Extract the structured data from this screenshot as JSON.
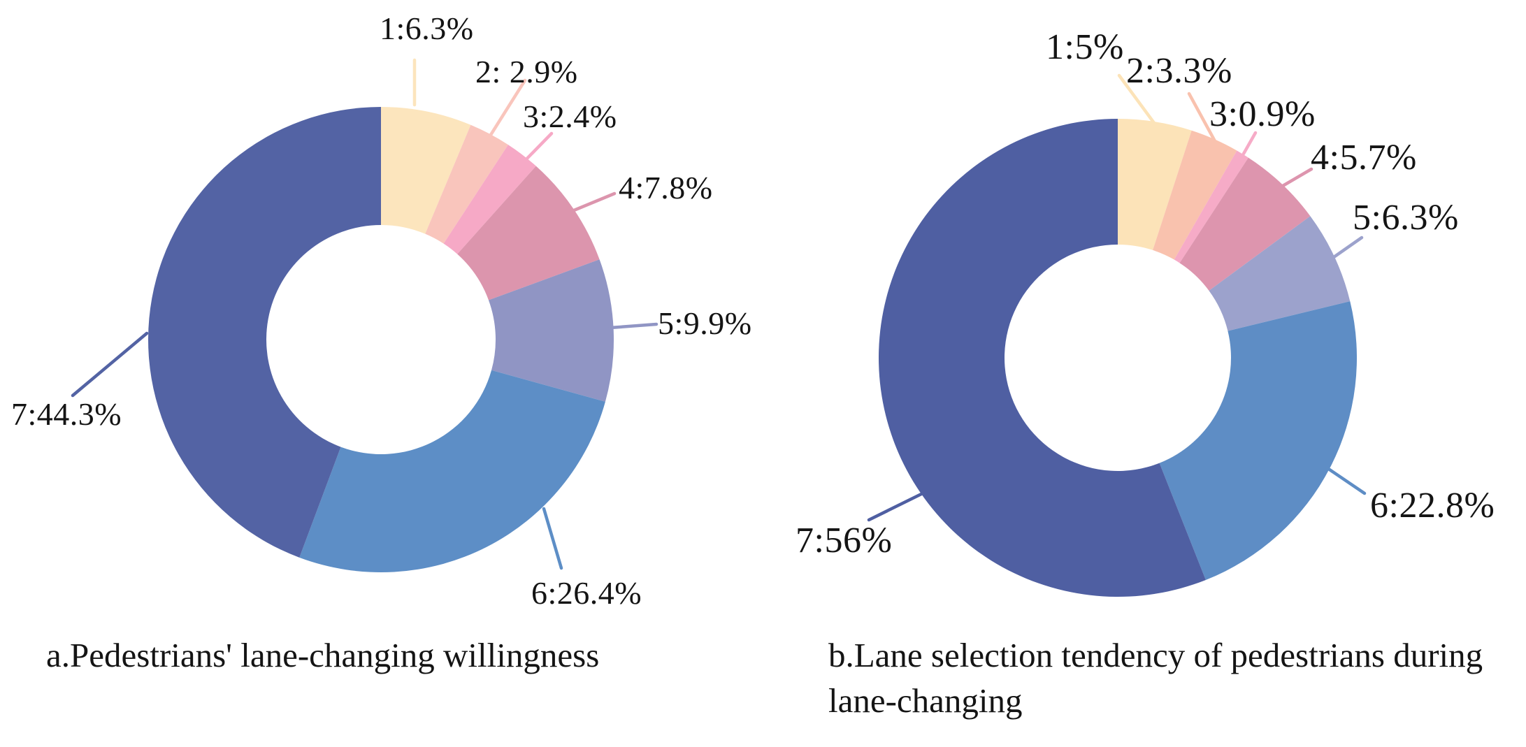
{
  "figure": {
    "background": "#ffffff",
    "description_visible_text_only": true
  },
  "chart_data": [
    {
      "type": "pie",
      "subtype": "donut",
      "title": "a.Pedestrians' lane-changing willingness",
      "categories": [
        "1",
        "2",
        "3",
        "4",
        "5",
        "6",
        "7"
      ],
      "values": [
        6.3,
        2.9,
        2.4,
        7.8,
        9.9,
        26.4,
        44.3
      ],
      "unit": "%",
      "slice_labels": [
        "1:6.3%",
        "2: 2.9%",
        "3:2.4%",
        "4:7.8%",
        "5:9.9%",
        "6:26.4%",
        "7:44.3%"
      ],
      "colors": [
        "#fce5bd",
        "#f9c5bc",
        "#f6a9c6",
        "#dc95ad",
        "#9095c4",
        "#5d8ec6",
        "#5363a4"
      ],
      "start_angle_deg": 0,
      "direction": "clockwise",
      "legend_position": "none",
      "labels_style": "leader-lines-outside"
    },
    {
      "type": "pie",
      "subtype": "donut",
      "title": "b.Lane selection tendency of pedestrians during lane-changing",
      "categories": [
        "1",
        "2",
        "3",
        "4",
        "5",
        "6",
        "7"
      ],
      "values": [
        5,
        3.3,
        0.9,
        5.7,
        6.3,
        22.8,
        56
      ],
      "unit": "%",
      "slice_labels": [
        "1:5%",
        "2:3.3%",
        "3:0.9%",
        "4:5.7%",
        "5:6.3%",
        "6:22.8%",
        "7:56%"
      ],
      "colors": [
        "#fce3b8",
        "#f9c2ae",
        "#f6abc7",
        "#dd95ae",
        "#9ca2cc",
        "#5e8dc5",
        "#4f5fa2"
      ],
      "start_angle_deg": 0,
      "direction": "clockwise",
      "legend_position": "none",
      "labels_style": "leader-lines-outside"
    }
  ]
}
